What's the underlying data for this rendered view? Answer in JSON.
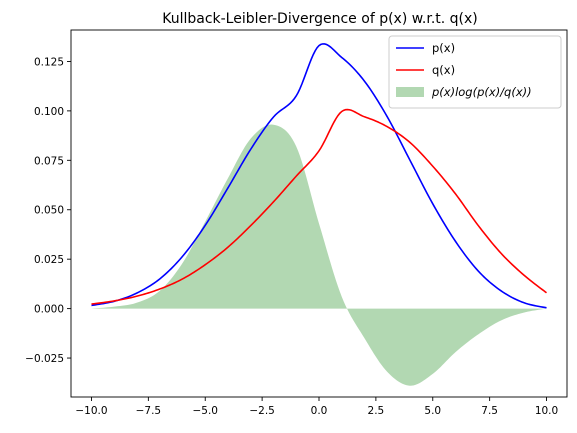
{
  "chart_data": {
    "type": "line",
    "title": "Kullback-Leibler-Divergence of p(x) w.r.t. q(x)",
    "xlabel": "",
    "ylabel": "",
    "xlim": [
      -10.9,
      10.9
    ],
    "ylim": [
      -0.0447,
      0.1409
    ],
    "x_ticks": [
      -10.0,
      -7.5,
      -5.0,
      -2.5,
      0.0,
      2.5,
      5.0,
      7.5,
      10.0
    ],
    "x_tick_labels": [
      "−10.0",
      "−7.5",
      "−5.0",
      "−2.5",
      "0.0",
      "2.5",
      "5.0",
      "7.5",
      "10.0"
    ],
    "y_ticks": [
      -0.025,
      0.0,
      0.025,
      0.05,
      0.075,
      0.1,
      0.125
    ],
    "y_tick_labels": [
      "−0.025",
      "0.000",
      "0.025",
      "0.050",
      "0.075",
      "0.100",
      "0.125"
    ],
    "grid": false,
    "legend_position": "top-right",
    "x": [
      -10,
      -9,
      -8,
      -7,
      -6,
      -5,
      -4,
      -3,
      -2,
      -1,
      0,
      1,
      2,
      3,
      4,
      5,
      6,
      7,
      8,
      9,
      10
    ],
    "series": [
      {
        "name": "p(x)",
        "color": "#0000ff",
        "kind": "line",
        "values": [
          0.0016,
          0.0037,
          0.0079,
          0.015,
          0.0264,
          0.0421,
          0.0611,
          0.0806,
          0.0969,
          0.1076,
          0.133,
          0.127,
          0.115,
          0.097,
          0.075,
          0.053,
          0.034,
          0.019,
          0.009,
          0.003,
          0.0004
        ]
      },
      {
        "name": "q(x)",
        "color": "#ff0000",
        "kind": "line",
        "values": [
          0.0023,
          0.0039,
          0.0063,
          0.0099,
          0.015,
          0.0222,
          0.0311,
          0.042,
          0.054,
          0.067,
          0.0798,
          0.0997,
          0.097,
          0.092,
          0.084,
          0.072,
          0.058,
          0.042,
          0.028,
          0.017,
          0.008
        ]
      },
      {
        "name": "p(x)log(p(x)/q(x))",
        "color": "#b2d8b2",
        "kind": "area",
        "values": [
          0.0,
          0.001,
          0.003,
          0.009,
          0.023,
          0.044,
          0.066,
          0.086,
          0.093,
          0.082,
          0.043,
          0.006,
          -0.015,
          -0.032,
          -0.039,
          -0.033,
          -0.022,
          -0.013,
          -0.006,
          -0.002,
          0.0
        ]
      }
    ]
  }
}
